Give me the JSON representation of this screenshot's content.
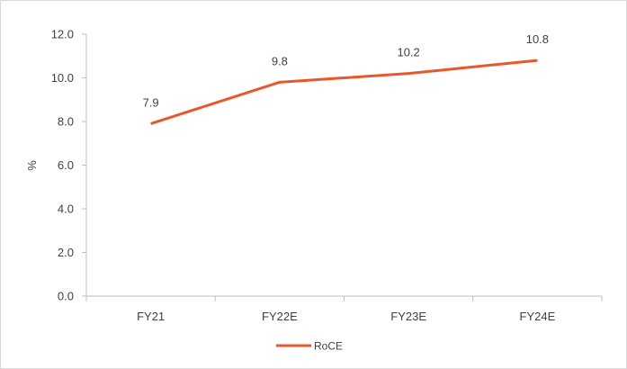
{
  "chart_data": {
    "type": "line",
    "categories": [
      "FY21",
      "FY22E",
      "FY23E",
      "FY24E"
    ],
    "series": [
      {
        "name": "RoCE",
        "values": [
          7.9,
          9.8,
          10.2,
          10.8
        ],
        "labels": [
          "7.9",
          "9.8",
          "10.2",
          "10.8"
        ],
        "color": "#e8582a"
      }
    ],
    "ylabel": "%",
    "xlabel": "",
    "title": "",
    "ylim": [
      0,
      12
    ],
    "yticks": [
      "0.0",
      "2.0",
      "4.0",
      "6.0",
      "8.0",
      "10.0",
      "12.0"
    ],
    "grid": false,
    "legend": "bottom-center"
  }
}
